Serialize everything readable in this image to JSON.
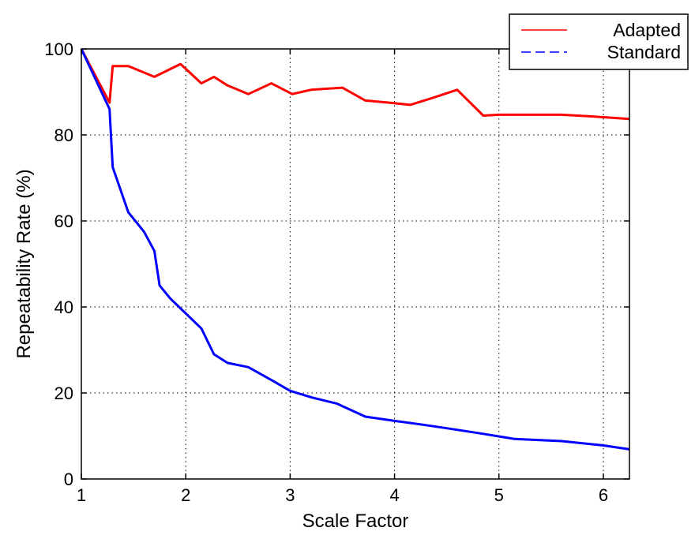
{
  "chart_data": {
    "type": "line",
    "xlabel": "Scale Factor",
    "ylabel": "Repeatability Rate (%)",
    "xlim": [
      1,
      6.25
    ],
    "ylim": [
      0,
      100
    ],
    "xticks": [
      1,
      2,
      3,
      4,
      5,
      6
    ],
    "yticks": [
      0,
      20,
      40,
      60,
      80,
      100
    ],
    "grid": true,
    "grid_style": "dotted",
    "legend_position": "top-right",
    "series": [
      {
        "name": "Adapted",
        "color": "#ff0000",
        "line_style": "solid",
        "points": [
          [
            1.0,
            100
          ],
          [
            1.27,
            87.5
          ],
          [
            1.3,
            96
          ],
          [
            1.45,
            96
          ],
          [
            1.7,
            93.5
          ],
          [
            1.95,
            96.5
          ],
          [
            2.15,
            92
          ],
          [
            2.27,
            93.5
          ],
          [
            2.4,
            91.5
          ],
          [
            2.6,
            89.5
          ],
          [
            2.82,
            92
          ],
          [
            3.02,
            89.5
          ],
          [
            3.2,
            90.5
          ],
          [
            3.5,
            91
          ],
          [
            3.72,
            88
          ],
          [
            3.95,
            87.5
          ],
          [
            4.15,
            87
          ],
          [
            4.35,
            88.5
          ],
          [
            4.6,
            90.5
          ],
          [
            4.85,
            84.5
          ],
          [
            5.0,
            84.7
          ],
          [
            5.3,
            84.7
          ],
          [
            5.6,
            84.7
          ],
          [
            5.9,
            84.3
          ],
          [
            6.25,
            83.7
          ]
        ]
      },
      {
        "name": "Standard",
        "color": "#0000ff",
        "line_style": "dashed",
        "points": [
          [
            1.0,
            100
          ],
          [
            1.27,
            86
          ],
          [
            1.3,
            72.5
          ],
          [
            1.45,
            62
          ],
          [
            1.6,
            57.5
          ],
          [
            1.7,
            53
          ],
          [
            1.75,
            45
          ],
          [
            1.85,
            42
          ],
          [
            2.0,
            38.5
          ],
          [
            2.15,
            35
          ],
          [
            2.27,
            29
          ],
          [
            2.4,
            27
          ],
          [
            2.6,
            26
          ],
          [
            2.82,
            23
          ],
          [
            3.0,
            20.5
          ],
          [
            3.2,
            19
          ],
          [
            3.45,
            17.5
          ],
          [
            3.72,
            14.5
          ],
          [
            4.0,
            13.5
          ],
          [
            4.25,
            12.7
          ],
          [
            4.5,
            11.8
          ],
          [
            4.85,
            10.5
          ],
          [
            5.15,
            9.3
          ],
          [
            5.6,
            8.8
          ],
          [
            6.0,
            7.8
          ],
          [
            6.25,
            6.9
          ]
        ]
      }
    ]
  }
}
